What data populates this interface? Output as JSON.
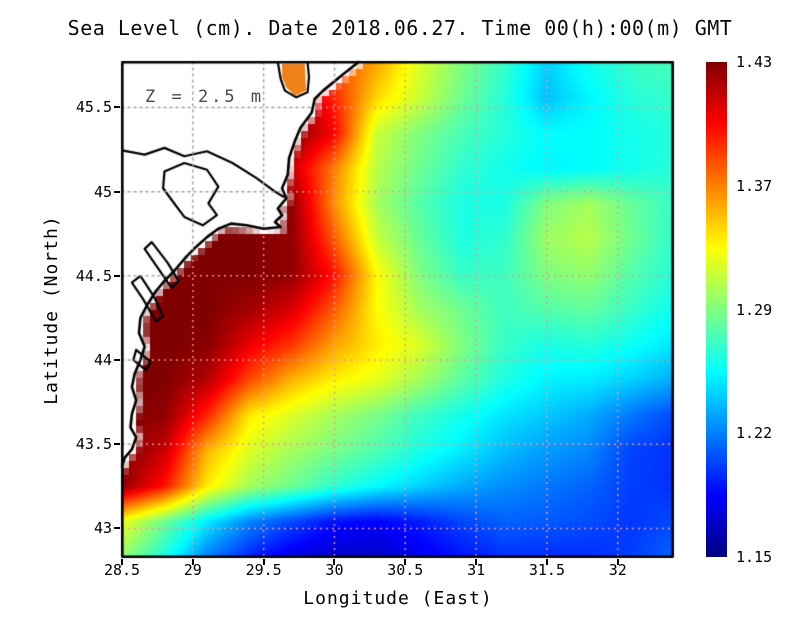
{
  "figure": {
    "title": "Sea Level (cm). Date 2018.06.27. Time 00(h):00(m) GMT",
    "annotation": "Z = 2.5 m",
    "x_axis": {
      "title": "Longitude (East)",
      "tick_labels": [
        "28.5",
        "29",
        "29.5",
        "30",
        "30.5",
        "31",
        "31.5",
        "32"
      ]
    },
    "y_axis": {
      "title": "Latitude (North)",
      "tick_labels": [
        "45.5",
        "45",
        "44.5",
        "44",
        "43.5",
        "43"
      ]
    },
    "colorbar": {
      "tick_labels": [
        "1.43",
        "1.37",
        "1.29",
        "1.22",
        "1.15"
      ]
    }
  },
  "chart_data": {
    "type": "heatmap",
    "title": "Sea Level (cm). Date 2018.06.27. Time 00(h):00(m) GMT",
    "xlabel": "Longitude (East)",
    "ylabel": "Latitude (North)",
    "annotation": "Z = 2.5 m",
    "x_range": [
      28.5,
      32.39
    ],
    "y_range": [
      42.83,
      45.77
    ],
    "x_ticks": [
      29,
      29.5,
      30,
      30.5,
      31,
      31.5,
      32
    ],
    "y_ticks": [
      45.5,
      45,
      44.5,
      44,
      43.5,
      43
    ],
    "grid_on": true,
    "gridline_color_sea": "rgba(236,150,152,0.95)",
    "gridline_color_land": "rgba(158,158,158,0.95)",
    "colormap": "jet",
    "value_range": [
      1.15,
      1.43
    ],
    "colorbar_ticks": [
      1.43,
      1.37,
      1.29,
      1.22,
      1.15
    ],
    "legend_position": "right",
    "grid_lon": [
      28.5,
      28.8,
      29.1,
      29.4,
      29.7,
      30.0,
      30.3,
      30.6,
      30.9,
      31.2,
      31.5,
      31.8,
      32.1,
      32.4
    ],
    "grid_lat": [
      45.77,
      45.56,
      45.35,
      45.14,
      44.93,
      44.72,
      44.51,
      44.3,
      44.09,
      43.88,
      43.67,
      43.46,
      43.25,
      43.04,
      42.83
    ],
    "values": [
      [
        null,
        null,
        null,
        null,
        1.385,
        1.375,
        1.35,
        1.315,
        1.29,
        1.27,
        1.242,
        1.26,
        1.27,
        1.275
      ],
      [
        null,
        null,
        null,
        null,
        null,
        1.385,
        1.335,
        1.31,
        1.285,
        1.265,
        1.238,
        1.253,
        1.265,
        1.27
      ],
      [
        null,
        null,
        null,
        null,
        null,
        1.395,
        1.31,
        1.29,
        1.275,
        1.265,
        1.255,
        1.255,
        1.26,
        1.265
      ],
      [
        null,
        null,
        null,
        null,
        1.41,
        1.36,
        1.305,
        1.285,
        1.268,
        1.26,
        1.253,
        1.255,
        1.26,
        1.266
      ],
      [
        null,
        null,
        null,
        null,
        1.425,
        1.355,
        1.3,
        1.278,
        1.262,
        1.262,
        1.29,
        1.3,
        1.283,
        1.27
      ],
      [
        null,
        null,
        1.43,
        1.43,
        1.425,
        1.37,
        1.31,
        1.283,
        1.263,
        1.268,
        1.298,
        1.305,
        1.285,
        1.268
      ],
      [
        null,
        null,
        1.43,
        1.43,
        1.425,
        1.39,
        1.325,
        1.29,
        1.27,
        1.272,
        1.29,
        1.295,
        1.278,
        1.265
      ],
      [
        null,
        1.43,
        1.43,
        1.42,
        1.405,
        1.37,
        1.325,
        1.3,
        1.285,
        1.272,
        1.278,
        1.282,
        1.27,
        1.258
      ],
      [
        null,
        1.43,
        1.428,
        1.4,
        1.38,
        1.35,
        1.33,
        1.315,
        1.29,
        1.27,
        1.262,
        1.265,
        1.258,
        1.248
      ],
      [
        null,
        1.43,
        1.415,
        1.375,
        1.345,
        1.328,
        1.318,
        1.3,
        1.28,
        1.263,
        1.252,
        1.25,
        1.242,
        1.232
      ],
      [
        null,
        1.425,
        1.385,
        1.33,
        1.315,
        1.3,
        1.288,
        1.272,
        1.26,
        1.248,
        1.24,
        1.232,
        1.218,
        1.205
      ],
      [
        null,
        1.41,
        1.345,
        1.315,
        1.3,
        1.288,
        1.276,
        1.262,
        1.25,
        1.237,
        1.228,
        1.222,
        1.203,
        1.198
      ],
      [
        1.425,
        1.39,
        1.33,
        1.3,
        1.285,
        1.268,
        1.255,
        1.243,
        1.232,
        1.224,
        1.218,
        1.212,
        1.202,
        1.198
      ],
      [
        1.32,
        1.285,
        1.25,
        1.222,
        1.205,
        1.19,
        1.185,
        1.193,
        1.204,
        1.212,
        1.21,
        1.206,
        1.2,
        1.205
      ],
      [
        1.295,
        1.262,
        1.22,
        1.195,
        1.178,
        1.17,
        1.17,
        1.18,
        1.19,
        1.198,
        1.197,
        1.197,
        1.202,
        1.212
      ]
    ],
    "land_fill_value": 1.43,
    "coastline": [
      [
        30.17,
        45.77
      ],
      [
        30.05,
        45.69
      ],
      [
        29.92,
        45.6
      ],
      [
        29.86,
        45.55
      ],
      [
        29.84,
        45.47
      ],
      [
        29.76,
        45.38
      ],
      [
        29.72,
        45.3
      ],
      [
        29.68,
        45.2
      ],
      [
        29.67,
        45.1
      ],
      [
        29.63,
        45.02
      ],
      [
        29.66,
        44.96
      ],
      [
        29.6,
        44.9
      ],
      [
        29.63,
        44.86
      ],
      [
        29.58,
        44.82
      ],
      [
        29.62,
        44.79
      ],
      [
        29.5,
        44.78
      ],
      [
        29.38,
        44.8
      ],
      [
        29.27,
        44.81
      ],
      [
        29.18,
        44.78
      ],
      [
        29.1,
        44.73
      ],
      [
        29.02,
        44.67
      ],
      [
        28.95,
        44.61
      ],
      [
        28.87,
        44.53
      ],
      [
        28.8,
        44.47
      ],
      [
        28.74,
        44.41
      ],
      [
        28.68,
        44.33
      ],
      [
        28.63,
        44.25
      ],
      [
        28.62,
        44.16
      ],
      [
        28.66,
        44.08
      ],
      [
        28.63,
        44.0
      ],
      [
        28.59,
        43.92
      ],
      [
        28.57,
        43.84
      ],
      [
        28.6,
        43.76
      ],
      [
        28.57,
        43.68
      ],
      [
        28.56,
        43.6
      ],
      [
        28.6,
        43.54
      ],
      [
        28.57,
        43.47
      ],
      [
        28.52,
        43.42
      ],
      [
        28.5,
        43.37
      ]
    ],
    "rivers": [
      [
        [
          28.5,
          45.245
        ],
        [
          28.66,
          45.22
        ],
        [
          28.8,
          45.26
        ],
        [
          28.94,
          45.21
        ],
        [
          29.1,
          45.24
        ],
        [
          29.28,
          45.17
        ],
        [
          29.45,
          45.08
        ],
        [
          29.58,
          45.0
        ],
        [
          29.64,
          44.97
        ]
      ],
      [
        [
          29.6,
          45.77
        ],
        [
          29.62,
          45.67
        ],
        [
          29.65,
          45.6
        ],
        [
          29.73,
          45.56
        ],
        [
          29.81,
          45.59
        ],
        [
          29.82,
          45.68
        ],
        [
          29.81,
          45.77
        ]
      ]
    ],
    "lagoons": [
      [
        [
          28.8,
          45.12
        ],
        [
          28.94,
          45.17
        ],
        [
          29.1,
          45.13
        ],
        [
          29.18,
          45.03
        ],
        [
          29.11,
          44.93
        ],
        [
          29.17,
          44.86
        ],
        [
          29.07,
          44.8
        ],
        [
          28.94,
          44.85
        ],
        [
          28.86,
          44.94
        ],
        [
          28.79,
          45.02
        ]
      ],
      [
        [
          28.71,
          44.7
        ],
        [
          28.82,
          44.58
        ],
        [
          28.9,
          44.47
        ],
        [
          28.85,
          44.43
        ],
        [
          28.75,
          44.55
        ],
        [
          28.66,
          44.66
        ]
      ],
      [
        [
          28.63,
          44.5
        ],
        [
          28.73,
          44.37
        ],
        [
          28.79,
          44.26
        ],
        [
          28.74,
          44.23
        ],
        [
          28.65,
          44.36
        ],
        [
          28.57,
          44.46
        ]
      ],
      [
        [
          28.6,
          44.06
        ],
        [
          28.7,
          43.99
        ],
        [
          28.67,
          43.94
        ],
        [
          28.58,
          44.0
        ]
      ]
    ],
    "delta_lagoon_patch": {
      "color": "#f08018",
      "polygon": [
        [
          29.63,
          45.76
        ],
        [
          29.79,
          45.76
        ],
        [
          29.8,
          45.6
        ],
        [
          29.72,
          45.57
        ],
        [
          29.66,
          45.62
        ],
        [
          29.63,
          45.68
        ]
      ]
    }
  }
}
